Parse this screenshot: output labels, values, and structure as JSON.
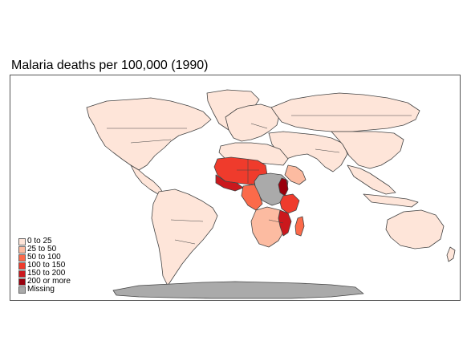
{
  "map": {
    "title": "Malaria deaths per 100,000 (1990)",
    "legend": [
      {
        "label": "0 to 25",
        "color": "#fee5d9"
      },
      {
        "label": "25 to 50",
        "color": "#fcbba1"
      },
      {
        "label": "50 to 100",
        "color": "#fb6a4a"
      },
      {
        "label": "100 to 150",
        "color": "#ef3b2c"
      },
      {
        "label": "150 to 200",
        "color": "#cb181d"
      },
      {
        "label": "200 or more",
        "color": "#99000d"
      },
      {
        "label": "Missing",
        "color": "#aaaaaa"
      }
    ]
  }
}
